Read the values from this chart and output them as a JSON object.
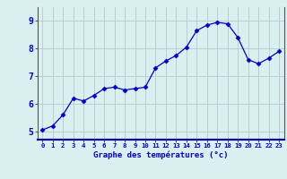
{
  "x": [
    0,
    1,
    2,
    3,
    4,
    5,
    6,
    7,
    8,
    9,
    10,
    11,
    12,
    13,
    14,
    15,
    16,
    17,
    18,
    19,
    20,
    21,
    22,
    23
  ],
  "y": [
    5.05,
    5.2,
    5.6,
    6.2,
    6.1,
    6.3,
    6.55,
    6.6,
    6.5,
    6.55,
    6.6,
    7.3,
    7.55,
    7.75,
    8.05,
    8.65,
    8.85,
    8.95,
    8.9,
    8.4,
    7.6,
    7.45,
    7.65,
    7.9
  ],
  "line_color": "#0000cc",
  "marker": "D",
  "marker_size": 2.5,
  "bg_color": "#daf0f0",
  "plot_bg_color": "#daf0f0",
  "grid_color": "#b0cccc",
  "xlabel": "Graphe des températures (°c)",
  "xlabel_color": "#0000cc",
  "ylabel_ticks": [
    5,
    6,
    7,
    8,
    9
  ],
  "ylim": [
    4.7,
    9.5
  ],
  "xlim": [
    -0.5,
    23.5
  ],
  "tick_color": "#0000cc",
  "axis_color": "#555555",
  "separator_color": "#0000aa",
  "xtick_labels": [
    "0",
    "1",
    "2",
    "3",
    "4",
    "5",
    "6",
    "7",
    "8",
    "9",
    "10",
    "11",
    "12",
    "13",
    "14",
    "15",
    "16",
    "17",
    "18",
    "19",
    "20",
    "21",
    "22",
    "23"
  ]
}
